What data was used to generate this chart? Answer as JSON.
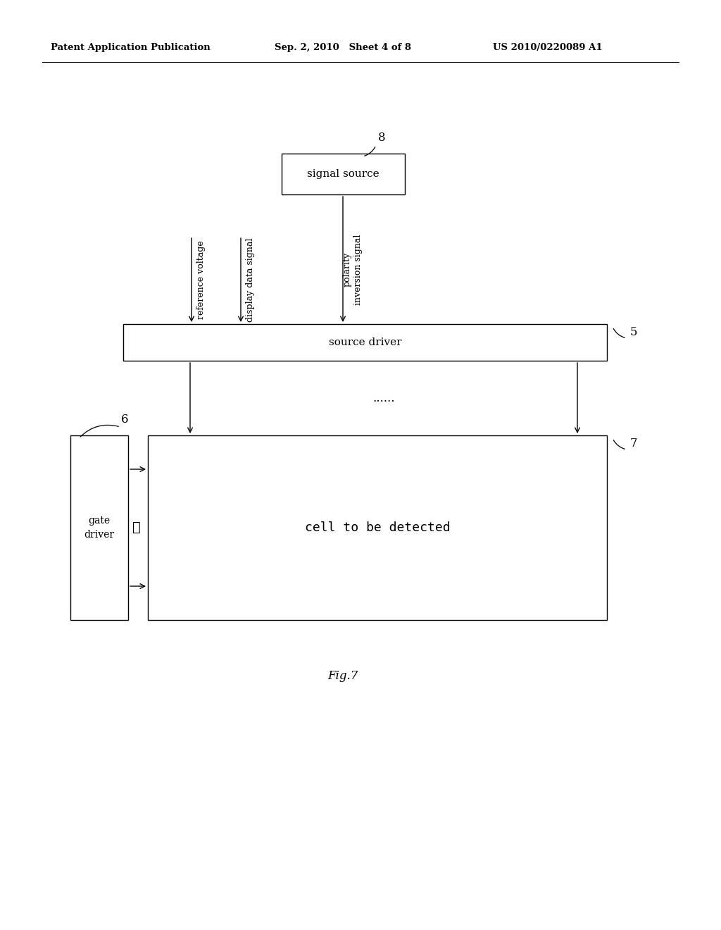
{
  "bg_color": "#ffffff",
  "header_left": "Patent Application Publication",
  "header_mid": "Sep. 2, 2010   Sheet 4 of 8",
  "header_right": "US 2010/0220089 A1",
  "fig_label": "Fig.7",
  "signal_source_label": "signal source",
  "signal_source_num": "8",
  "source_driver_label": "source driver",
  "source_driver_num": "5",
  "gate_driver_label": "gate\ndriver",
  "gate_driver_num": "6",
  "cell_label": "cell to be detected",
  "cell_num": "7",
  "arrow_label_ref": "reference voltage",
  "arrow_label_disp": "display data signal",
  "arrow_label_pol": "polarity\ninversion signal",
  "dots_horiz": "......",
  "gate_dots": "⋮",
  "line_color": "#000000",
  "text_color": "#000000",
  "line_color_light": "#555555"
}
